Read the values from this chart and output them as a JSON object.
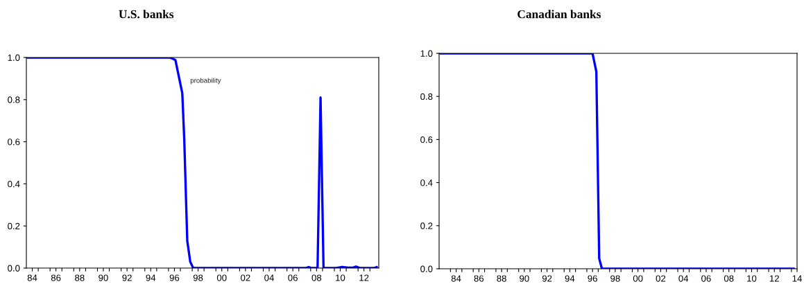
{
  "chart_data": [
    {
      "type": "line",
      "title": "U.S. banks",
      "xlim": [
        "1984",
        "2013-10"
      ],
      "ylim": [
        0,
        1
      ],
      "yticks": [
        {
          "value": 0,
          "label": "0.0"
        },
        {
          "value": 0.2,
          "label": "0.2"
        },
        {
          "value": 0.4,
          "label": "0.4"
        },
        {
          "value": 0.6,
          "label": "0.6"
        },
        {
          "value": 0.8,
          "label": "0.8"
        },
        {
          "value": 1,
          "label": "1.0"
        }
      ],
      "xticks": [
        {
          "value": "1985",
          "label": null
        },
        {
          "value": "1986",
          "label": null
        },
        {
          "value": "1987",
          "label": null
        },
        {
          "value": "1988",
          "label": null
        },
        {
          "value": "1989",
          "label": null
        },
        {
          "value": "1990",
          "label": null
        },
        {
          "value": "1991",
          "label": null
        },
        {
          "value": "1992",
          "label": null
        },
        {
          "value": "1993",
          "label": null
        },
        {
          "value": "1994",
          "label": null
        },
        {
          "value": "1995",
          "label": null
        },
        {
          "value": "1996",
          "label": null
        },
        {
          "value": "1997",
          "label": null
        },
        {
          "value": "1998",
          "label": null
        },
        {
          "value": "1999",
          "label": null
        },
        {
          "value": "2000",
          "label": null
        },
        {
          "value": "2001",
          "label": null
        },
        {
          "value": "2002",
          "label": null
        },
        {
          "value": "2003",
          "label": null
        },
        {
          "value": "2004",
          "label": null
        },
        {
          "value": "2005",
          "label": null
        },
        {
          "value": "2006",
          "label": null
        },
        {
          "value": "2007",
          "label": null
        },
        {
          "value": "2008",
          "label": null
        },
        {
          "value": "2009",
          "label": null
        },
        {
          "value": "2010",
          "label": null
        },
        {
          "value": "2011",
          "label": null
        },
        {
          "value": "2012",
          "label": null
        },
        {
          "value": "2013",
          "label": null
        },
        {
          "value": "1984-07",
          "label": "84"
        },
        {
          "value": "1986-07",
          "label": "86"
        },
        {
          "value": "1988-07",
          "label": "88"
        },
        {
          "value": "1990-07",
          "label": "90"
        },
        {
          "value": "1992-07",
          "label": "92"
        },
        {
          "value": "1994-07",
          "label": "94"
        },
        {
          "value": "1996-07",
          "label": "96"
        },
        {
          "value": "1998-07",
          "label": "98"
        },
        {
          "value": "2000-07",
          "label": "00"
        },
        {
          "value": "2002-07",
          "label": "02"
        },
        {
          "value": "2004-07",
          "label": "04"
        },
        {
          "value": "2006-07",
          "label": "06"
        },
        {
          "value": "2008-07",
          "label": "08"
        },
        {
          "value": "2010-07",
          "label": "10"
        },
        {
          "value": "2012-07",
          "label": "12"
        }
      ],
      "x": [
        "1984-02",
        "1996-02",
        "1996-05",
        "1996-08",
        "1996-11",
        "1997-03",
        "1997-05",
        "1997-08",
        "1997-11",
        "1998-02",
        "2007-08",
        "2007-11",
        "2008-02",
        "2008-05",
        "2008-08",
        "2008-11",
        "2009-02",
        "2010-03",
        "2010-09",
        "2011-03",
        "2011-08",
        "2011-11",
        "2012-03",
        "2013-05",
        "2013-08"
      ],
      "series": [
        {
          "name": "probability",
          "color": "#0000ff",
          "values": [
            1.0,
            1.0,
            0.995,
            0.988,
            0.92,
            0.83,
            0.61,
            0.13,
            0.03,
            0.0,
            0.0,
            0.005,
            0.0,
            0.0,
            0.0,
            0.81,
            0.0,
            0.0,
            0.005,
            0.002,
            0.002,
            0.007,
            0.0,
            0.0,
            0.005
          ]
        }
      ]
    },
    {
      "type": "line",
      "title": "Canadian banks",
      "xlim": [
        "1983",
        "2014-07"
      ],
      "ylim": [
        0,
        1
      ],
      "yticks": [
        {
          "value": 0,
          "label": "0.0"
        },
        {
          "value": 0.2,
          "label": "0.2"
        },
        {
          "value": 0.4,
          "label": "0.4"
        },
        {
          "value": 0.6,
          "label": "0.6"
        },
        {
          "value": 0.8,
          "label": "0.8"
        },
        {
          "value": 1,
          "label": "1.0"
        }
      ],
      "xticks": [
        {
          "value": "1984",
          "label": null
        },
        {
          "value": "1985",
          "label": null
        },
        {
          "value": "1986",
          "label": null
        },
        {
          "value": "1987",
          "label": null
        },
        {
          "value": "1988",
          "label": null
        },
        {
          "value": "1989",
          "label": null
        },
        {
          "value": "1990",
          "label": null
        },
        {
          "value": "1991",
          "label": null
        },
        {
          "value": "1992",
          "label": null
        },
        {
          "value": "1993",
          "label": null
        },
        {
          "value": "1994",
          "label": null
        },
        {
          "value": "1995",
          "label": null
        },
        {
          "value": "1996",
          "label": null
        },
        {
          "value": "1997",
          "label": null
        },
        {
          "value": "1998",
          "label": null
        },
        {
          "value": "1999",
          "label": null
        },
        {
          "value": "2000",
          "label": null
        },
        {
          "value": "2001",
          "label": null
        },
        {
          "value": "2002",
          "label": null
        },
        {
          "value": "2003",
          "label": null
        },
        {
          "value": "2004",
          "label": null
        },
        {
          "value": "2005",
          "label": null
        },
        {
          "value": "2006",
          "label": null
        },
        {
          "value": "2007",
          "label": null
        },
        {
          "value": "2008",
          "label": null
        },
        {
          "value": "2009",
          "label": null
        },
        {
          "value": "2010",
          "label": null
        },
        {
          "value": "2011",
          "label": null
        },
        {
          "value": "2012",
          "label": null
        },
        {
          "value": "2013",
          "label": null
        },
        {
          "value": "2014",
          "label": null
        },
        {
          "value": "1984-07",
          "label": "84"
        },
        {
          "value": "1986-07",
          "label": "86"
        },
        {
          "value": "1988-07",
          "label": "88"
        },
        {
          "value": "1990-07",
          "label": "90"
        },
        {
          "value": "1992-07",
          "label": "92"
        },
        {
          "value": "1994-07",
          "label": "94"
        },
        {
          "value": "1996-07",
          "label": "96"
        },
        {
          "value": "1998-07",
          "label": "98"
        },
        {
          "value": "2000-07",
          "label": "00"
        },
        {
          "value": "2002-07",
          "label": "02"
        },
        {
          "value": "2004-07",
          "label": "04"
        },
        {
          "value": "2006-07",
          "label": "06"
        },
        {
          "value": "2008-07",
          "label": "08"
        },
        {
          "value": "2010-07",
          "label": "10"
        },
        {
          "value": "2012-07",
          "label": "12"
        },
        {
          "value": "2014-07",
          "label": "14"
        }
      ],
      "x": [
        "1983-02",
        "1996-07",
        "1996-11",
        "1997-02",
        "1997-05",
        "2014-04"
      ],
      "series": [
        {
          "color": "#0000ff",
          "values": [
            1.0,
            1.0,
            0.915,
            0.047,
            0.0,
            0.0
          ]
        }
      ]
    }
  ]
}
